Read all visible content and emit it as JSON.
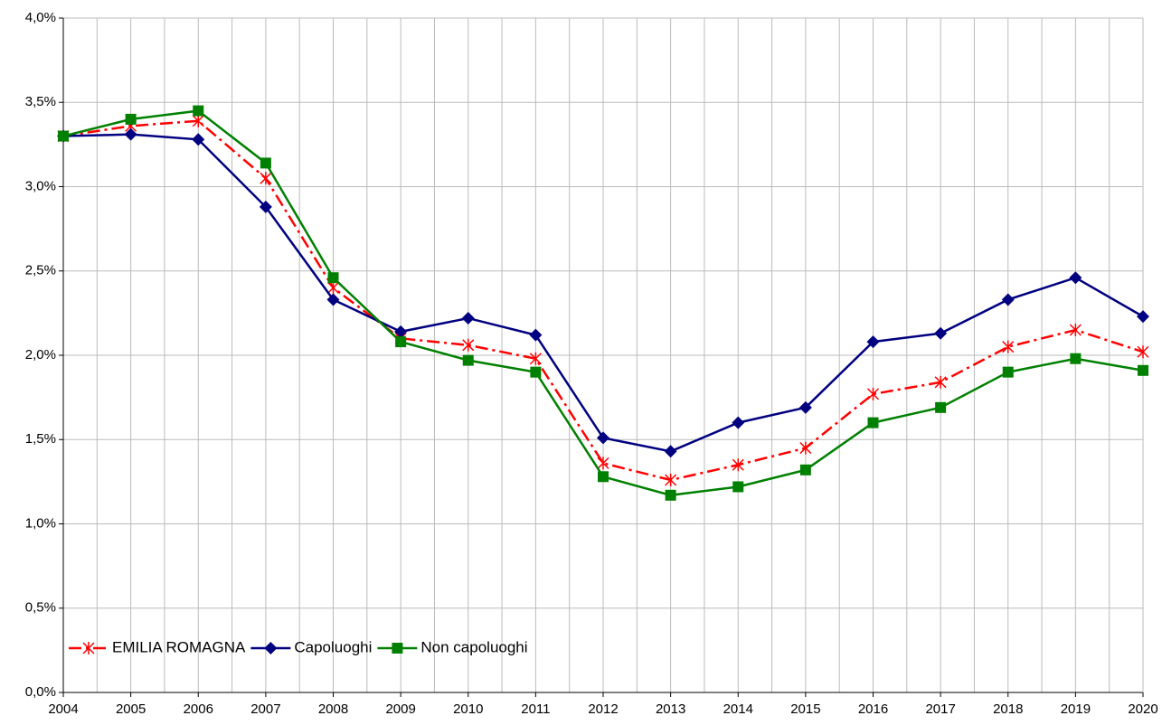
{
  "chart_data": {
    "type": "line",
    "x": [
      2004,
      2005,
      2006,
      2007,
      2008,
      2009,
      2010,
      2011,
      2012,
      2013,
      2014,
      2015,
      2016,
      2017,
      2018,
      2019,
      2020
    ],
    "xlim": [
      2004,
      2020
    ],
    "xticks": [
      2004,
      2005,
      2006,
      2007,
      2008,
      2009,
      2010,
      2011,
      2012,
      2013,
      2014,
      2015,
      2016,
      2017,
      2018,
      2019,
      2020
    ],
    "ylim": [
      0,
      4
    ],
    "yticks": [
      {
        "value": 0,
        "label": "0,0%"
      },
      {
        "value": 0.5,
        "label": "0,5%"
      },
      {
        "value": 1,
        "label": "1,0%"
      },
      {
        "value": 1.5,
        "label": "1,5%"
      },
      {
        "value": 2,
        "label": "2,0%"
      },
      {
        "value": 2.5,
        "label": "2,5%"
      },
      {
        "value": 3,
        "label": "3,0%"
      },
      {
        "value": 3.5,
        "label": "3,5%"
      },
      {
        "value": 4,
        "label": "4,0%"
      }
    ],
    "grid": true,
    "legend": "lower left",
    "series": [
      {
        "name": "EMILIA ROMAGNA",
        "color": "#ff0000",
        "marker": "star",
        "dash": "dashdot",
        "values": [
          3.3,
          3.36,
          3.39,
          3.05,
          2.4,
          2.1,
          2.06,
          1.98,
          1.36,
          1.26,
          1.35,
          1.45,
          1.77,
          1.84,
          2.05,
          2.15,
          2.02
        ]
      },
      {
        "name": "Capoluoghi",
        "color": "#000080",
        "marker": "diamond",
        "dash": "solid",
        "values": [
          3.3,
          3.31,
          3.28,
          2.88,
          2.33,
          2.14,
          2.22,
          2.12,
          1.51,
          1.43,
          1.6,
          1.69,
          2.08,
          2.13,
          2.33,
          2.46,
          2.23
        ]
      },
      {
        "name": "Non capoluoghi",
        "color": "#008000",
        "marker": "square",
        "dash": "solid",
        "values": [
          3.3,
          3.4,
          3.45,
          3.14,
          2.46,
          2.08,
          1.97,
          1.9,
          1.28,
          1.17,
          1.22,
          1.32,
          1.6,
          1.69,
          1.9,
          1.98,
          1.91
        ]
      }
    ]
  }
}
